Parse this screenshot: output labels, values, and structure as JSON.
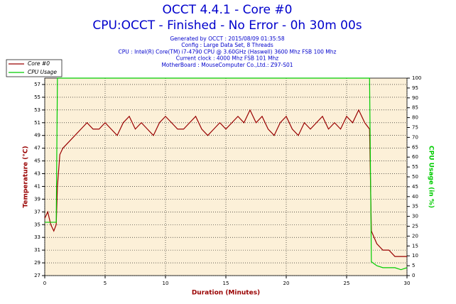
{
  "chart_data": {
    "type": "line",
    "title": "OCCT 4.4.1 - Core #0",
    "title2": "CPU:OCCT - Finished - No Error - 0h 30m 00s",
    "subtitle": [
      "Generated by OCCT : 2015/08/09 01:35:58",
      "Config : Large Data Set, 8 Threads",
      "CPU : Intel(R) Core(TM) i7-4790 CPU @ 3.60GHz (Haswell) 3600 Mhz FSB 100 Mhz",
      "Current clock : 4000 Mhz FSB 101 Mhz",
      "MotherBoard : MouseComputer Co.,Ltd.: Z97-S01"
    ],
    "xlabel": "Duration (Minutes)",
    "ylabel": "Temperature (°C)",
    "y2label": "CPU Usage (in %)",
    "x": [
      0,
      0.25,
      0.5,
      0.75,
      0.95,
      1.05,
      1.25,
      1.5,
      2,
      2.5,
      3,
      3.5,
      4,
      4.5,
      5,
      5.5,
      6,
      6.5,
      7,
      7.5,
      8,
      8.5,
      9,
      9.5,
      10,
      10.5,
      11,
      11.5,
      12,
      12.5,
      13,
      13.5,
      14,
      14.5,
      15,
      15.5,
      16,
      16.5,
      17,
      17.5,
      18,
      18.5,
      19,
      19.5,
      20,
      20.5,
      21,
      21.5,
      22,
      22.5,
      23,
      23.5,
      24,
      24.5,
      25,
      25.5,
      26,
      26.5,
      26.9,
      27.05,
      27.5,
      28,
      28.5,
      29,
      29.5,
      30
    ],
    "series": [
      {
        "name": "Core #0",
        "color": "#990000",
        "values": [
          36,
          37,
          35,
          34,
          35,
          41,
          46,
          47,
          48,
          49,
          50,
          51,
          50,
          50,
          51,
          50,
          49,
          51,
          52,
          50,
          51,
          50,
          49,
          51,
          52,
          51,
          50,
          50,
          51,
          52,
          50,
          49,
          50,
          51,
          50,
          51,
          52,
          51,
          53,
          51,
          52,
          50,
          49,
          51,
          52,
          50,
          49,
          51,
          50,
          51,
          52,
          50,
          51,
          50,
          52,
          51,
          53,
          51,
          50,
          34,
          32,
          31,
          31,
          30,
          30,
          30
        ]
      },
      {
        "name": "CPU Usage",
        "color": "#00cc00",
        "axis": "y2",
        "values": [
          27,
          27,
          27,
          27,
          27,
          100,
          100,
          100,
          100,
          100,
          100,
          100,
          100,
          100,
          100,
          100,
          100,
          100,
          100,
          100,
          100,
          100,
          100,
          100,
          100,
          100,
          100,
          100,
          100,
          100,
          100,
          100,
          100,
          100,
          100,
          100,
          100,
          100,
          100,
          100,
          100,
          100,
          100,
          100,
          100,
          100,
          100,
          100,
          100,
          100,
          100,
          100,
          100,
          100,
          100,
          100,
          100,
          100,
          100,
          7,
          5,
          4,
          4,
          4,
          3,
          4
        ]
      }
    ],
    "xlim": [
      0,
      30
    ],
    "xticks": [
      0,
      5,
      10,
      15,
      20,
      25,
      30
    ],
    "ylim": [
      27,
      58
    ],
    "yticks": [
      27,
      29,
      31,
      33,
      35,
      37,
      39,
      41,
      43,
      45,
      47,
      49,
      51,
      53,
      55,
      57
    ],
    "y2lim": [
      0,
      100
    ],
    "y2ticks": [
      0,
      5,
      10,
      15,
      20,
      25,
      30,
      35,
      40,
      45,
      50,
      55,
      60,
      65,
      70,
      75,
      80,
      85,
      90,
      95,
      100
    ],
    "grid": true,
    "legend": "upper left"
  }
}
